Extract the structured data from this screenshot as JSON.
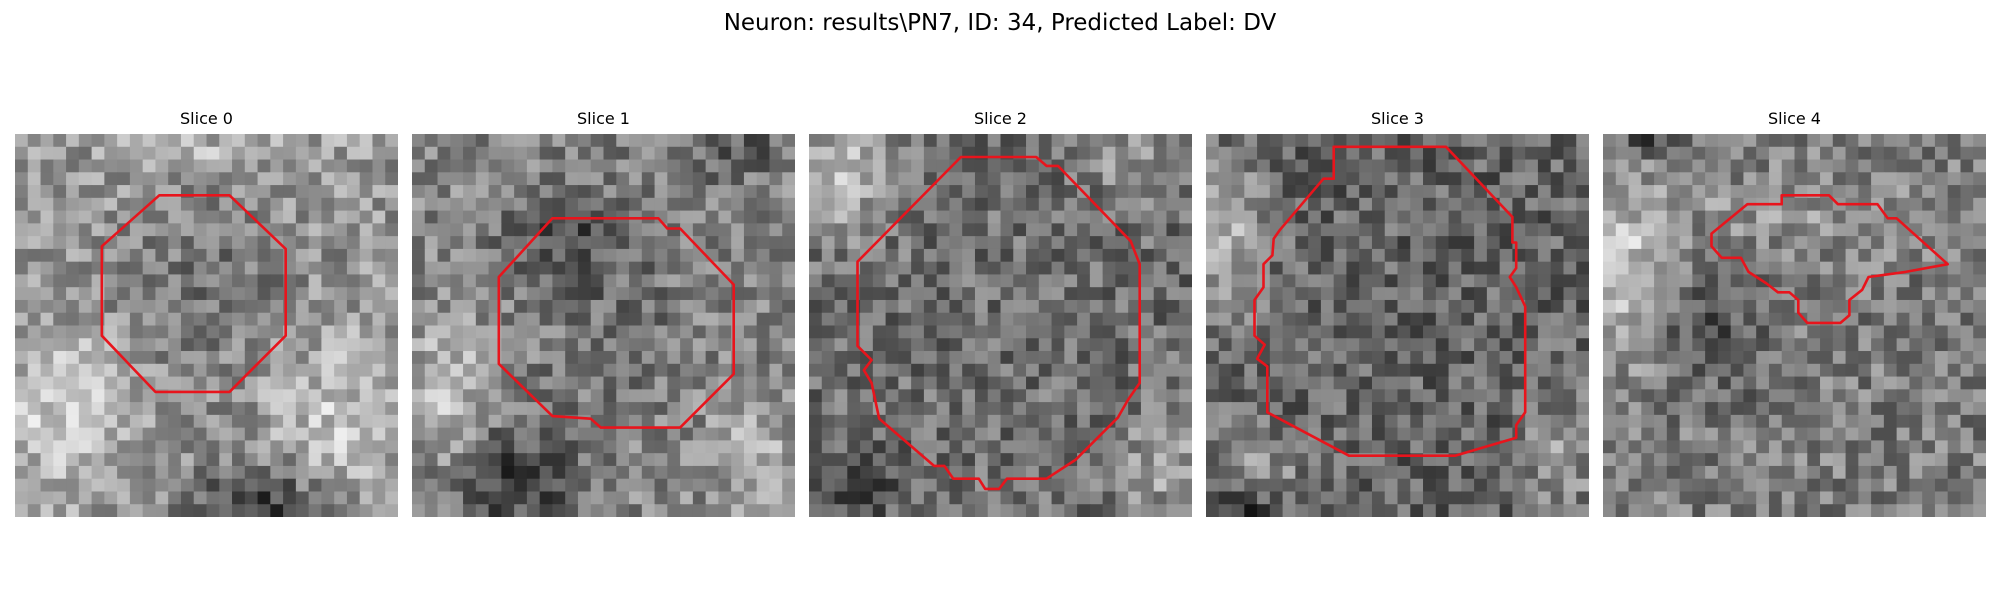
{
  "figure": {
    "title": "Neuron: results\\PN7, ID: 34, Predicted Label: DV"
  },
  "panels": [
    {
      "title": "Slice 0"
    },
    {
      "title": "Slice 1"
    },
    {
      "title": "Slice 2"
    },
    {
      "title": "Slice 3"
    },
    {
      "title": "Slice 4"
    }
  ],
  "style": {
    "contour_color": "#e8141c",
    "colormap": "grayscale"
  }
}
